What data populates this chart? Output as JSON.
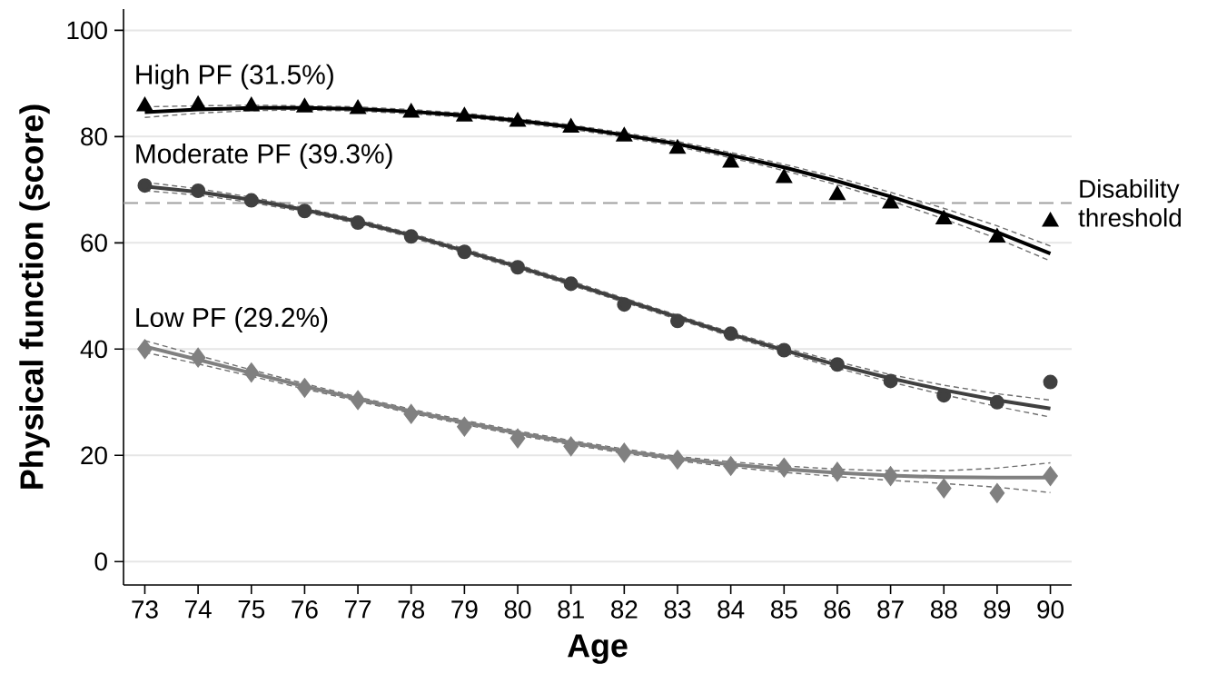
{
  "chart_data": {
    "type": "line",
    "xlabel": "Age",
    "ylabel": "Physical function (score)",
    "x": [
      73,
      74,
      75,
      76,
      77,
      78,
      79,
      80,
      81,
      82,
      83,
      84,
      85,
      86,
      87,
      88,
      89,
      90
    ],
    "xlim": [
      72.6,
      90.4
    ],
    "xticks": [
      73,
      74,
      75,
      76,
      77,
      78,
      79,
      80,
      81,
      82,
      83,
      84,
      85,
      86,
      87,
      88,
      89,
      90
    ],
    "ylim": [
      -4.4,
      104
    ],
    "yticks": [
      0,
      20,
      40,
      60,
      80,
      100
    ],
    "grid": "y",
    "ref_lines": [
      {
        "axis": "y",
        "value": 67.5,
        "label": "Disability threshold",
        "color": "#a0a0a0",
        "line_style": "dashed"
      }
    ],
    "series": [
      {
        "marker": "none",
        "line_style": "dashed",
        "color": "#707070",
        "values": [
          83.6,
          84.4,
          84.9,
          85.0,
          84.8,
          84.3,
          83.6,
          82.6,
          81.4,
          79.9,
          78.1,
          76.0,
          73.6,
          70.9,
          67.9,
          64.5,
          60.8,
          56.6
        ]
      },
      {
        "marker": "none",
        "line_style": "dashed",
        "color": "#707070",
        "values": [
          85.6,
          85.8,
          85.9,
          85.8,
          85.6,
          85.1,
          84.4,
          83.4,
          82.2,
          80.7,
          79.1,
          77.0,
          74.8,
          72.3,
          69.5,
          66.5,
          63.2,
          59.4
        ]
      },
      {
        "marker": "none",
        "line_style": "dashed",
        "color": "#707070",
        "values": [
          69.8,
          69.0,
          67.6,
          65.8,
          63.6,
          61.0,
          58.1,
          55.1,
          52.0,
          48.8,
          45.6,
          42.4,
          39.3,
          36.4,
          33.8,
          31.4,
          29.2,
          27.2
        ]
      },
      {
        "marker": "none",
        "line_style": "dashed",
        "color": "#707070",
        "values": [
          71.4,
          70.2,
          68.6,
          66.6,
          64.4,
          61.8,
          58.9,
          55.9,
          52.8,
          49.6,
          46.4,
          43.2,
          40.3,
          37.6,
          35.2,
          33.2,
          31.6,
          30.4
        ]
      },
      {
        "marker": "none",
        "line_style": "dashed",
        "color": "#707070",
        "values": [
          39.4,
          37.2,
          34.9,
          32.5,
          30.2,
          27.9,
          25.8,
          23.8,
          22.0,
          20.4,
          19.0,
          17.8,
          16.8,
          16.0,
          15.3,
          14.7,
          14.0,
          13.0
        ]
      },
      {
        "marker": "none",
        "line_style": "dashed",
        "color": "#707070",
        "values": [
          41.6,
          38.8,
          36.1,
          33.5,
          31.0,
          28.7,
          26.6,
          24.6,
          22.8,
          21.2,
          19.8,
          18.8,
          18.0,
          17.4,
          17.1,
          17.1,
          17.6,
          18.6
        ]
      },
      {
        "marker": "none",
        "line_style": "solid",
        "color": "#000000",
        "values": [
          84.6,
          85.1,
          85.4,
          85.4,
          85.2,
          84.7,
          84.0,
          83.0,
          81.8,
          80.3,
          78.6,
          76.5,
          74.2,
          71.6,
          68.7,
          65.5,
          62.0,
          58.0
        ]
      },
      {
        "marker": "none",
        "line_style": "solid",
        "color": "#404040",
        "values": [
          70.6,
          69.6,
          68.1,
          66.2,
          64.0,
          61.4,
          58.5,
          55.5,
          52.4,
          49.2,
          46.0,
          42.8,
          39.8,
          37.0,
          34.5,
          32.3,
          30.4,
          28.8
        ]
      },
      {
        "marker": "none",
        "line_style": "solid",
        "color": "#808080",
        "values": [
          40.5,
          38.0,
          35.5,
          33.0,
          30.6,
          28.3,
          26.2,
          24.2,
          22.4,
          20.8,
          19.4,
          18.3,
          17.4,
          16.7,
          16.2,
          15.9,
          15.8,
          15.8
        ]
      },
      {
        "name": "High PF (31.5%)",
        "type": "scatter",
        "marker": "triangle",
        "color": "#000000",
        "values": [
          85.7,
          85.9,
          85.7,
          85.5,
          85.2,
          84.5,
          83.8,
          82.8,
          81.7,
          80.0,
          77.7,
          75.1,
          72.2,
          69.0,
          67.4,
          64.4,
          61.0,
          64.0
        ]
      },
      {
        "name": "Moderate PF (39.3%)",
        "type": "scatter",
        "marker": "circle",
        "color": "#404040",
        "values": [
          70.8,
          69.8,
          68.0,
          66.0,
          63.8,
          61.2,
          58.3,
          55.4,
          52.3,
          48.4,
          45.3,
          42.9,
          39.8,
          37.1,
          34.0,
          31.3,
          30.0,
          33.8
        ]
      },
      {
        "name": "Low PF (29.2%)",
        "type": "scatter",
        "marker": "diamond",
        "color": "#808080",
        "values": [
          40.0,
          38.4,
          35.6,
          32.7,
          30.4,
          27.8,
          25.4,
          23.2,
          21.7,
          20.5,
          19.2,
          18.0,
          17.7,
          16.9,
          16.1,
          13.8,
          12.9,
          16.1
        ]
      }
    ]
  }
}
